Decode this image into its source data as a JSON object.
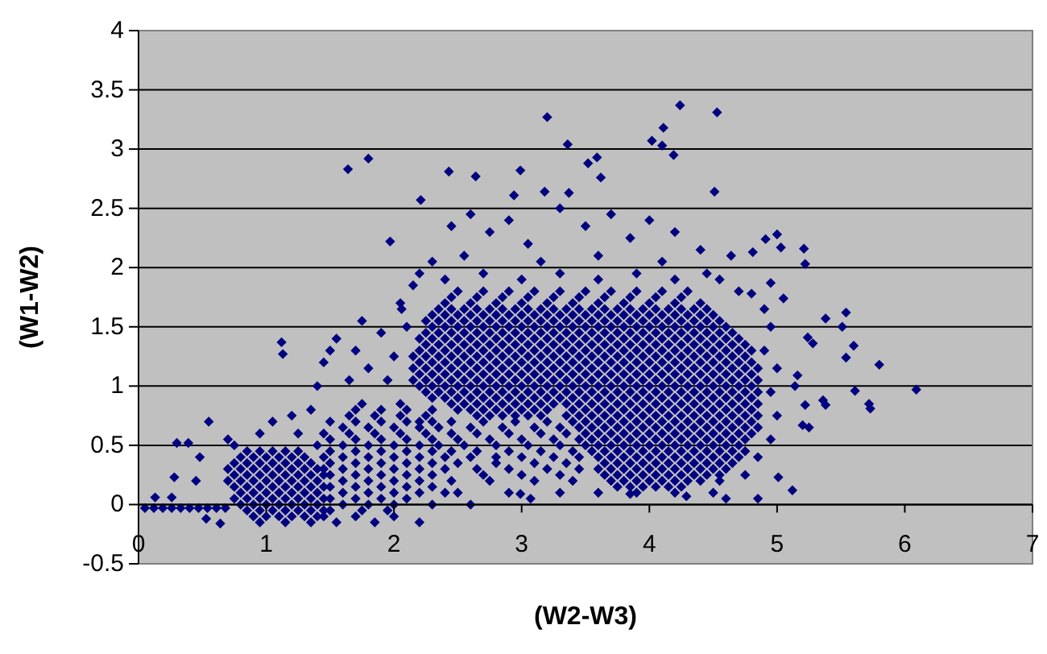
{
  "chart_data": {
    "type": "scatter",
    "xlabel": "(W2-W3)",
    "ylabel": "(W1-W2)",
    "xlim": [
      0,
      7
    ],
    "ylim": [
      -0.5,
      4
    ],
    "xticks": [
      0,
      1,
      2,
      3,
      4,
      5,
      6,
      7
    ],
    "yticks": [
      -0.5,
      0,
      0.5,
      1,
      1.5,
      2,
      2.5,
      3,
      3.5,
      4
    ],
    "grid": "y",
    "marker": "diamond",
    "series": [
      {
        "color": "#000080",
        "x": [
          2.5,
          2.7,
          2.9,
          3.1,
          3.3,
          3.5,
          3.7,
          3.9,
          4.1,
          4.3,
          2.45,
          2.65,
          2.85,
          3.05,
          3.25,
          3.45,
          3.65,
          3.85,
          4.05,
          4.25,
          2.4,
          2.6,
          2.8,
          3,
          3.2,
          3.4,
          3.6,
          3.8,
          4,
          4.2,
          4.4,
          2.35,
          2.45,
          2.55,
          2.65,
          2.75,
          2.85,
          2.95,
          3.05,
          3.15,
          3.25,
          3.35,
          3.45,
          3.55,
          3.65,
          3.75,
          3.85,
          3.95,
          4.05,
          4.15,
          4.25,
          4.35,
          4.45,
          2.3,
          2.4,
          2.5,
          2.6,
          2.7,
          2.8,
          2.9,
          3,
          3.1,
          3.2,
          3.3,
          3.4,
          3.5,
          3.6,
          3.7,
          3.8,
          3.9,
          4,
          4.1,
          4.2,
          4.3,
          4.4,
          4.5,
          2.25,
          2.35,
          2.45,
          2.55,
          2.65,
          2.75,
          2.85,
          2.95,
          3.05,
          3.15,
          3.25,
          3.35,
          3.45,
          3.55,
          3.65,
          3.75,
          3.85,
          3.95,
          4.05,
          4.15,
          4.25,
          4.35,
          4.45,
          4.55,
          2.3,
          2.4,
          2.5,
          2.6,
          2.7,
          2.8,
          2.9,
          3,
          3.1,
          3.2,
          3.3,
          3.4,
          3.5,
          3.6,
          3.7,
          3.8,
          3.9,
          4,
          4.1,
          4.2,
          4.3,
          4.4,
          4.5,
          4.6,
          2.25,
          2.35,
          2.45,
          2.55,
          2.65,
          2.75,
          2.85,
          2.95,
          3.05,
          3.15,
          3.25,
          3.35,
          3.45,
          3.55,
          3.65,
          3.75,
          3.85,
          3.95,
          4.05,
          4.15,
          4.25,
          4.35,
          4.45,
          4.55,
          4.65,
          2.2,
          2.3,
          2.4,
          2.5,
          2.6,
          2.7,
          2.8,
          2.9,
          3,
          3.1,
          3.2,
          3.3,
          3.4,
          3.5,
          3.6,
          3.7,
          3.8,
          3.9,
          4,
          4.1,
          4.2,
          4.3,
          4.4,
          4.5,
          4.6,
          4.7,
          2.25,
          2.35,
          2.45,
          2.55,
          2.65,
          2.75,
          2.85,
          2.95,
          3.05,
          3.15,
          3.25,
          3.35,
          3.45,
          3.55,
          3.65,
          3.75,
          3.85,
          3.95,
          4.05,
          4.15,
          4.25,
          4.35,
          4.45,
          4.55,
          4.65,
          4.75,
          2.2,
          2.3,
          2.4,
          2.5,
          2.6,
          2.7,
          2.8,
          2.9,
          3,
          3.1,
          3.2,
          3.3,
          3.4,
          3.5,
          3.6,
          3.7,
          3.8,
          3.9,
          4,
          4.1,
          4.2,
          4.3,
          4.4,
          4.5,
          4.6,
          4.7,
          4.8,
          2.15,
          2.25,
          2.35,
          2.45,
          2.55,
          2.65,
          2.75,
          2.85,
          2.95,
          3.05,
          3.15,
          3.25,
          3.35,
          3.45,
          3.55,
          3.65,
          3.75,
          3.85,
          3.95,
          4.05,
          4.15,
          4.25,
          4.35,
          4.45,
          4.55,
          4.65,
          4.75,
          2.2,
          2.3,
          2.4,
          2.5,
          2.6,
          2.7,
          2.8,
          2.9,
          3,
          3.1,
          3.2,
          3.3,
          3.4,
          3.5,
          3.6,
          3.7,
          3.8,
          3.9,
          4,
          4.1,
          4.2,
          4.3,
          4.4,
          4.5,
          4.6,
          4.7,
          4.8,
          2.15,
          2.25,
          2.35,
          2.45,
          2.55,
          2.65,
          2.75,
          2.85,
          2.95,
          3.05,
          3.15,
          3.25,
          3.35,
          3.45,
          3.55,
          3.65,
          3.75,
          3.85,
          3.95,
          4.05,
          4.15,
          4.25,
          4.35,
          4.45,
          4.55,
          4.65,
          4.75,
          4.85,
          2.2,
          2.3,
          2.4,
          2.5,
          2.6,
          2.7,
          2.8,
          2.9,
          3,
          3.1,
          3.2,
          3.3,
          3.4,
          3.5,
          3.6,
          3.7,
          3.8,
          3.9,
          4,
          4.1,
          4.2,
          4.3,
          4.4,
          4.5,
          4.6,
          4.7,
          4.8,
          2.15,
          2.25,
          2.35,
          2.45,
          2.55,
          2.65,
          2.75,
          2.85,
          2.95,
          3.05,
          3.15,
          3.25,
          3.35,
          3.45,
          3.55,
          3.65,
          3.75,
          3.85,
          3.95,
          4.05,
          4.15,
          4.25,
          4.35,
          4.45,
          4.55,
          4.65,
          4.75,
          4.85,
          2.2,
          2.3,
          2.4,
          2.5,
          2.6,
          2.7,
          2.8,
          2.9,
          3,
          3.1,
          3.2,
          3.3,
          3.4,
          3.5,
          3.6,
          3.7,
          3.8,
          3.9,
          4,
          4.1,
          4.2,
          4.3,
          4.4,
          4.5,
          4.6,
          4.7,
          4.8,
          2.25,
          2.35,
          2.45,
          2.55,
          2.65,
          2.75,
          2.85,
          2.95,
          3.05,
          3.15,
          3.25,
          3.35,
          3.45,
          3.55,
          3.65,
          3.75,
          3.85,
          3.95,
          4.05,
          4.15,
          4.25,
          4.35,
          4.45,
          4.55,
          4.65,
          4.75,
          4.85,
          2.3,
          2.4,
          2.5,
          2.6,
          2.7,
          2.8,
          2.9,
          3,
          3.1,
          3.2,
          3.3,
          3.4,
          3.5,
          3.6,
          3.7,
          3.8,
          3.9,
          4,
          4.1,
          4.2,
          4.3,
          4.4,
          4.5,
          4.6,
          4.7,
          4.8,
          2.45,
          2.55,
          2.65,
          2.75,
          2.85,
          2.95,
          3.05,
          3.15,
          3.25,
          3.35,
          3.45,
          3.55,
          3.65,
          3.75,
          3.85,
          3.95,
          4.05,
          4.15,
          4.25,
          4.35,
          4.45,
          4.55,
          4.65,
          4.75,
          4.85,
          2.5,
          2.6,
          2.7,
          2.8,
          2.9,
          3,
          3.1,
          3.2,
          3.4,
          3.5,
          3.6,
          3.7,
          3.8,
          3.9,
          4,
          4.1,
          4.2,
          4.3,
          4.4,
          4.5,
          4.6,
          4.7,
          4.8,
          2.65,
          2.75,
          2.85,
          2.95,
          3.05,
          3.15,
          3.35,
          3.45,
          3.55,
          3.65,
          3.75,
          3.85,
          3.95,
          4.05,
          4.15,
          4.25,
          4.35,
          4.45,
          4.55,
          4.65,
          4.75,
          4.85,
          3.4,
          3.5,
          3.6,
          3.7,
          3.8,
          3.9,
          4,
          4.1,
          4.2,
          4.3,
          4.4,
          4.5,
          4.6,
          4.7,
          4.8,
          3.45,
          3.55,
          3.65,
          3.75,
          3.85,
          3.95,
          4.05,
          4.15,
          4.25,
          4.35,
          4.45,
          4.55,
          4.65,
          4.75,
          4.85,
          3.5,
          3.6,
          3.7,
          3.8,
          3.9,
          4,
          4.1,
          4.2,
          4.3,
          4.4,
          4.5,
          4.6,
          4.7,
          4.8,
          3.45,
          3.55,
          3.65,
          3.75,
          3.85,
          3.95,
          4.05,
          4.15,
          4.25,
          4.35,
          4.45,
          4.55,
          4.65,
          4.75,
          3.5,
          3.6,
          3.7,
          3.8,
          3.9,
          4,
          4.1,
          4.2,
          4.3,
          4.4,
          4.5,
          4.6,
          4.7,
          3.55,
          3.65,
          3.75,
          3.85,
          3.95,
          4.05,
          4.15,
          4.25,
          4.35,
          4.45,
          4.55,
          4.65,
          4.75,
          3.6,
          3.7,
          3.8,
          3.9,
          4,
          4.1,
          4.2,
          4.3,
          4.4,
          4.5,
          4.6,
          4.7,
          3.65,
          3.75,
          3.85,
          3.95,
          4.05,
          4.15,
          4.25,
          4.35,
          4.45,
          4.55,
          4.65,
          3.6,
          3.7,
          3.8,
          3.9,
          4,
          4.1,
          4.2,
          4.3,
          4.4,
          4.5,
          4.6,
          3.65,
          3.75,
          3.85,
          3.95,
          4.05,
          4.15,
          4.25,
          4.35,
          4.45,
          4.55,
          3.7,
          3.8,
          3.9,
          4,
          4.1,
          4.2,
          4.3,
          4.4,
          3.75,
          3.85,
          3.95,
          4.05,
          4.15,
          4.25,
          2.2,
          2.45,
          2.7,
          2.95,
          3.2,
          2.35,
          2.6,
          2.85,
          3.1,
          3.3,
          2.45,
          2.65,
          2.9,
          3.15,
          3.35,
          2.5,
          2.75,
          3,
          3.25,
          2.35,
          2.55,
          2.8,
          3.05,
          3.3,
          2.45,
          2.65,
          2.9,
          3.15,
          3.4,
          2.6,
          2.8,
          3,
          3.25,
          3.45,
          2.5,
          2.8,
          3.1,
          3.35,
          2.65,
          2.9,
          3.2,
          3.45,
          2.7,
          3,
          3.3,
          2.75,
          3.1,
          3.4,
          4.55,
          2.5,
          2.9,
          3.3,
          3.6,
          3.9,
          4.2,
          4.5,
          1.75,
          2.05,
          1.7,
          1.9,
          2.1,
          2.3,
          1.65,
          1.85,
          2.05,
          2.25,
          1.5,
          1.7,
          1.9,
          2.1,
          2.3,
          1.6,
          1.8,
          2,
          2.2,
          1.45,
          1.65,
          1.85,
          2.05,
          2.25,
          1.5,
          1.7,
          1.9,
          2.1,
          2.3,
          1.4,
          1.6,
          1.8,
          2,
          2.2,
          1.5,
          1.7,
          1.9,
          2.1,
          2.3,
          1.45,
          1.6,
          1.8,
          2,
          2.2,
          2.4,
          1.5,
          1.7,
          1.9,
          2.1,
          2.3,
          1.45,
          1.6,
          1.8,
          2,
          2.2,
          2.4,
          1.5,
          1.7,
          1.9,
          2.1,
          2.3,
          1.6,
          1.8,
          2,
          2.2,
          2.45,
          1.5,
          1.7,
          1.9,
          2.1,
          2.3,
          1.6,
          1.8,
          2,
          2.2,
          2.4,
          1.5,
          1.7,
          1.9,
          2.1,
          1.6,
          1.8,
          2,
          2.3,
          2.6,
          1.5,
          1.75,
          1.95,
          1.45,
          1.7,
          2,
          1.55,
          1.85,
          2.2,
          0.85,
          0.95,
          1.05,
          1.15,
          1.25,
          0.8,
          0.9,
          1,
          1.1,
          1.2,
          1.3,
          0.75,
          0.85,
          0.95,
          1.05,
          1.15,
          1.25,
          1.35,
          0.7,
          0.8,
          0.9,
          1,
          1.1,
          1.2,
          1.3,
          1.4,
          0.75,
          0.85,
          0.95,
          1.05,
          1.15,
          1.25,
          1.35,
          1.45,
          0.7,
          0.8,
          0.9,
          1,
          1.1,
          1.2,
          1.3,
          1.4,
          0.75,
          0.85,
          0.95,
          1.05,
          1.15,
          1.25,
          1.35,
          1.45,
          0.8,
          0.9,
          1,
          1.1,
          1.2,
          1.3,
          1.4,
          0.75,
          0.85,
          0.95,
          1.05,
          1.15,
          1.25,
          1.35,
          1.45,
          0.8,
          0.9,
          1,
          1.1,
          1.2,
          1.3,
          1.4,
          0.85,
          0.95,
          1.05,
          1.15,
          1.25,
          1.35,
          1.45,
          0.9,
          1,
          1.1,
          1.2,
          1.3,
          1.4,
          0.95,
          1.15,
          1.35,
          0.05,
          0.12,
          0.19,
          0.26,
          0.33,
          0.4,
          0.47,
          0.54,
          0.61,
          0.68,
          0.7,
          0.75,
          0.95,
          1.05,
          1.2,
          1.35,
          1.25,
          0.3,
          0.39,
          0.28,
          0.55,
          0.48,
          0.45,
          0.13,
          0.26,
          0.53,
          0.64,
          1.12,
          1.13,
          1.45,
          1.55,
          1.7,
          1.8,
          1.9,
          2,
          2.1,
          1.65,
          1.95,
          2.05,
          1.75,
          1.4,
          1.5,
          2.15,
          2.45,
          2.6,
          2.75,
          2.9,
          3.05,
          3.3,
          3.5,
          3.7,
          3.85,
          4,
          4.2,
          4.4,
          2.55,
          3.15,
          3.6,
          4.1,
          2.3,
          2.2,
          2.4,
          2.7,
          3,
          3.3,
          3.6,
          3.9,
          4.2,
          4.45,
          1.64,
          1.8,
          1.97,
          2.06,
          2.21,
          2.43,
          2.64,
          2.99,
          2.94,
          3.2,
          3.36,
          3.52,
          3.59,
          3.62,
          4.02,
          4.11,
          4.1,
          4.19,
          4.24,
          4.53,
          4.51,
          3.18,
          3.37,
          4.91,
          5,
          5.03,
          5.21,
          5.22,
          4.81,
          4.64,
          5.54,
          5.38,
          5.05,
          4.95,
          4.8,
          5.51,
          5.6,
          5.54,
          5.8,
          6.09,
          5.61,
          5.72,
          5.73,
          5.36,
          5.38,
          5.22,
          5.25,
          5.2,
          5.12,
          5.01,
          4.85,
          4.6,
          4.29,
          3.85,
          3.07,
          2.99,
          5.24,
          5.28,
          5.16,
          5.14,
          4.95,
          4.9,
          5,
          4.95,
          5,
          4.95,
          4.85,
          4.75,
          4.9,
          4.7,
          4.55
        ],
        "values": [
          1.8,
          1.8,
          1.8,
          1.8,
          1.8,
          1.8,
          1.8,
          1.8,
          1.8,
          1.8,
          1.75,
          1.75,
          1.75,
          1.75,
          1.75,
          1.75,
          1.75,
          1.75,
          1.75,
          1.75,
          1.7,
          1.7,
          1.7,
          1.7,
          1.7,
          1.7,
          1.7,
          1.7,
          1.7,
          1.7,
          1.7,
          1.65,
          1.65,
          1.65,
          1.65,
          1.65,
          1.65,
          1.65,
          1.65,
          1.65,
          1.65,
          1.65,
          1.65,
          1.65,
          1.65,
          1.65,
          1.65,
          1.65,
          1.65,
          1.65,
          1.65,
          1.65,
          1.65,
          1.6,
          1.6,
          1.6,
          1.6,
          1.6,
          1.6,
          1.6,
          1.6,
          1.6,
          1.6,
          1.6,
          1.6,
          1.6,
          1.6,
          1.6,
          1.6,
          1.6,
          1.6,
          1.6,
          1.6,
          1.6,
          1.6,
          1.6,
          1.55,
          1.55,
          1.55,
          1.55,
          1.55,
          1.55,
          1.55,
          1.55,
          1.55,
          1.55,
          1.55,
          1.55,
          1.55,
          1.55,
          1.55,
          1.55,
          1.55,
          1.55,
          1.55,
          1.55,
          1.55,
          1.55,
          1.55,
          1.55,
          1.5,
          1.5,
          1.5,
          1.5,
          1.5,
          1.5,
          1.5,
          1.5,
          1.5,
          1.5,
          1.5,
          1.5,
          1.5,
          1.5,
          1.5,
          1.5,
          1.5,
          1.5,
          1.5,
          1.5,
          1.5,
          1.5,
          1.5,
          1.5,
          1.45,
          1.45,
          1.45,
          1.45,
          1.45,
          1.45,
          1.45,
          1.45,
          1.45,
          1.45,
          1.45,
          1.45,
          1.45,
          1.45,
          1.45,
          1.45,
          1.45,
          1.45,
          1.45,
          1.45,
          1.45,
          1.45,
          1.45,
          1.45,
          1.45,
          1.4,
          1.4,
          1.4,
          1.4,
          1.4,
          1.4,
          1.4,
          1.4,
          1.4,
          1.4,
          1.4,
          1.4,
          1.4,
          1.4,
          1.4,
          1.4,
          1.4,
          1.4,
          1.4,
          1.4,
          1.4,
          1.4,
          1.4,
          1.4,
          1.4,
          1.4,
          1.35,
          1.35,
          1.35,
          1.35,
          1.35,
          1.35,
          1.35,
          1.35,
          1.35,
          1.35,
          1.35,
          1.35,
          1.35,
          1.35,
          1.35,
          1.35,
          1.35,
          1.35,
          1.35,
          1.35,
          1.35,
          1.35,
          1.35,
          1.35,
          1.35,
          1.35,
          1.3,
          1.3,
          1.3,
          1.3,
          1.3,
          1.3,
          1.3,
          1.3,
          1.3,
          1.3,
          1.3,
          1.3,
          1.3,
          1.3,
          1.3,
          1.3,
          1.3,
          1.3,
          1.3,
          1.3,
          1.3,
          1.3,
          1.3,
          1.3,
          1.3,
          1.3,
          1.3,
          1.25,
          1.25,
          1.25,
          1.25,
          1.25,
          1.25,
          1.25,
          1.25,
          1.25,
          1.25,
          1.25,
          1.25,
          1.25,
          1.25,
          1.25,
          1.25,
          1.25,
          1.25,
          1.25,
          1.25,
          1.25,
          1.25,
          1.25,
          1.25,
          1.25,
          1.25,
          1.25,
          1.2,
          1.2,
          1.2,
          1.2,
          1.2,
          1.2,
          1.2,
          1.2,
          1.2,
          1.2,
          1.2,
          1.2,
          1.2,
          1.2,
          1.2,
          1.2,
          1.2,
          1.2,
          1.2,
          1.2,
          1.2,
          1.2,
          1.2,
          1.2,
          1.2,
          1.2,
          1.2,
          1.15,
          1.15,
          1.15,
          1.15,
          1.15,
          1.15,
          1.15,
          1.15,
          1.15,
          1.15,
          1.15,
          1.15,
          1.15,
          1.15,
          1.15,
          1.15,
          1.15,
          1.15,
          1.15,
          1.15,
          1.15,
          1.15,
          1.15,
          1.15,
          1.15,
          1.15,
          1.15,
          1.15,
          1.1,
          1.1,
          1.1,
          1.1,
          1.1,
          1.1,
          1.1,
          1.1,
          1.1,
          1.1,
          1.1,
          1.1,
          1.1,
          1.1,
          1.1,
          1.1,
          1.1,
          1.1,
          1.1,
          1.1,
          1.1,
          1.1,
          1.1,
          1.1,
          1.1,
          1.1,
          1.1,
          1.05,
          1.05,
          1.05,
          1.05,
          1.05,
          1.05,
          1.05,
          1.05,
          1.05,
          1.05,
          1.05,
          1.05,
          1.05,
          1.05,
          1.05,
          1.05,
          1.05,
          1.05,
          1.05,
          1.05,
          1.05,
          1.05,
          1.05,
          1.05,
          1.05,
          1.05,
          1.05,
          1.05,
          1,
          1,
          1,
          1,
          1,
          1,
          1,
          1,
          1,
          1,
          1,
          1,
          1,
          1,
          1,
          1,
          1,
          1,
          1,
          1,
          1,
          1,
          1,
          1,
          1,
          1,
          1,
          0.95,
          0.95,
          0.95,
          0.95,
          0.95,
          0.95,
          0.95,
          0.95,
          0.95,
          0.95,
          0.95,
          0.95,
          0.95,
          0.95,
          0.95,
          0.95,
          0.95,
          0.95,
          0.95,
          0.95,
          0.95,
          0.95,
          0.95,
          0.95,
          0.95,
          0.95,
          0.95,
          0.9,
          0.9,
          0.9,
          0.9,
          0.9,
          0.9,
          0.9,
          0.9,
          0.9,
          0.9,
          0.9,
          0.9,
          0.9,
          0.9,
          0.9,
          0.9,
          0.9,
          0.9,
          0.9,
          0.9,
          0.9,
          0.9,
          0.9,
          0.9,
          0.9,
          0.9,
          0.85,
          0.85,
          0.85,
          0.85,
          0.85,
          0.85,
          0.85,
          0.85,
          0.85,
          0.85,
          0.85,
          0.85,
          0.85,
          0.85,
          0.85,
          0.85,
          0.85,
          0.85,
          0.85,
          0.85,
          0.85,
          0.85,
          0.85,
          0.85,
          0.85,
          0.8,
          0.8,
          0.8,
          0.8,
          0.8,
          0.8,
          0.8,
          0.8,
          0.8,
          0.8,
          0.8,
          0.8,
          0.8,
          0.8,
          0.8,
          0.8,
          0.8,
          0.8,
          0.8,
          0.8,
          0.8,
          0.8,
          0.8,
          0.75,
          0.75,
          0.75,
          0.75,
          0.75,
          0.75,
          0.75,
          0.75,
          0.75,
          0.75,
          0.75,
          0.75,
          0.75,
          0.75,
          0.75,
          0.75,
          0.75,
          0.75,
          0.75,
          0.75,
          0.75,
          0.75,
          0.7,
          0.7,
          0.7,
          0.7,
          0.7,
          0.7,
          0.7,
          0.7,
          0.7,
          0.7,
          0.7,
          0.7,
          0.7,
          0.7,
          0.7,
          0.65,
          0.65,
          0.65,
          0.65,
          0.65,
          0.65,
          0.65,
          0.65,
          0.65,
          0.65,
          0.65,
          0.65,
          0.65,
          0.65,
          0.65,
          0.6,
          0.6,
          0.6,
          0.6,
          0.6,
          0.6,
          0.6,
          0.6,
          0.6,
          0.6,
          0.6,
          0.6,
          0.6,
          0.6,
          0.55,
          0.55,
          0.55,
          0.55,
          0.55,
          0.55,
          0.55,
          0.55,
          0.55,
          0.55,
          0.55,
          0.55,
          0.55,
          0.55,
          0.5,
          0.5,
          0.5,
          0.5,
          0.5,
          0.5,
          0.5,
          0.5,
          0.5,
          0.5,
          0.5,
          0.5,
          0.5,
          0.45,
          0.45,
          0.45,
          0.45,
          0.45,
          0.45,
          0.45,
          0.45,
          0.45,
          0.45,
          0.45,
          0.45,
          0.45,
          0.4,
          0.4,
          0.4,
          0.4,
          0.4,
          0.4,
          0.4,
          0.4,
          0.4,
          0.4,
          0.4,
          0.4,
          0.35,
          0.35,
          0.35,
          0.35,
          0.35,
          0.35,
          0.35,
          0.35,
          0.35,
          0.35,
          0.35,
          0.3,
          0.3,
          0.3,
          0.3,
          0.3,
          0.3,
          0.3,
          0.3,
          0.3,
          0.3,
          0.3,
          0.25,
          0.25,
          0.25,
          0.25,
          0.25,
          0.25,
          0.25,
          0.25,
          0.25,
          0.25,
          0.2,
          0.2,
          0.2,
          0.2,
          0.2,
          0.2,
          0.2,
          0.2,
          0.15,
          0.15,
          0.15,
          0.15,
          0.15,
          0.15,
          0.7,
          0.7,
          0.7,
          0.7,
          0.7,
          0.65,
          0.65,
          0.65,
          0.65,
          0.65,
          0.6,
          0.6,
          0.6,
          0.6,
          0.6,
          0.55,
          0.55,
          0.55,
          0.55,
          0.5,
          0.5,
          0.5,
          0.5,
          0.5,
          0.45,
          0.45,
          0.45,
          0.45,
          0.45,
          0.4,
          0.4,
          0.4,
          0.4,
          0.4,
          0.35,
          0.35,
          0.35,
          0.35,
          0.3,
          0.3,
          0.3,
          0.3,
          0.25,
          0.25,
          0.25,
          0.2,
          0.2,
          0.2,
          0.2,
          0.1,
          0.1,
          0.1,
          0.1,
          0.1,
          0.1,
          0.1,
          0.85,
          0.85,
          0.8,
          0.8,
          0.8,
          0.8,
          0.75,
          0.75,
          0.75,
          0.75,
          0.7,
          0.7,
          0.7,
          0.7,
          0.7,
          0.65,
          0.65,
          0.65,
          0.65,
          0.6,
          0.6,
          0.6,
          0.6,
          0.6,
          0.55,
          0.55,
          0.55,
          0.55,
          0.55,
          0.5,
          0.5,
          0.5,
          0.5,
          0.5,
          0.45,
          0.45,
          0.45,
          0.45,
          0.45,
          0.4,
          0.4,
          0.4,
          0.4,
          0.4,
          0.4,
          0.35,
          0.35,
          0.35,
          0.35,
          0.35,
          0.3,
          0.3,
          0.3,
          0.3,
          0.3,
          0.3,
          0.25,
          0.25,
          0.25,
          0.25,
          0.25,
          0.2,
          0.2,
          0.2,
          0.2,
          0.2,
          0.15,
          0.15,
          0.15,
          0.15,
          0.15,
          0.1,
          0.1,
          0.1,
          0.1,
          0.1,
          0.05,
          0.05,
          0.05,
          0.05,
          0,
          0,
          0,
          0,
          0,
          -0.05,
          -0.05,
          -0.05,
          -0.1,
          -0.1,
          -0.1,
          -0.15,
          -0.15,
          -0.15,
          0.45,
          0.45,
          0.45,
          0.45,
          0.45,
          0.4,
          0.4,
          0.4,
          0.4,
          0.4,
          0.4,
          0.35,
          0.35,
          0.35,
          0.35,
          0.35,
          0.35,
          0.35,
          0.3,
          0.3,
          0.3,
          0.3,
          0.3,
          0.3,
          0.3,
          0.3,
          0.25,
          0.25,
          0.25,
          0.25,
          0.25,
          0.25,
          0.25,
          0.25,
          0.2,
          0.2,
          0.2,
          0.2,
          0.2,
          0.2,
          0.2,
          0.2,
          0.15,
          0.15,
          0.15,
          0.15,
          0.15,
          0.15,
          0.15,
          0.15,
          0.1,
          0.1,
          0.1,
          0.1,
          0.1,
          0.1,
          0.1,
          0.05,
          0.05,
          0.05,
          0.05,
          0.05,
          0.05,
          0.05,
          0.05,
          0,
          0,
          0,
          0,
          0,
          0,
          0,
          -0.05,
          -0.05,
          -0.05,
          -0.05,
          -0.05,
          -0.05,
          -0.05,
          -0.1,
          -0.1,
          -0.1,
          -0.1,
          -0.1,
          -0.1,
          -0.15,
          -0.15,
          -0.15,
          -0.03,
          -0.03,
          -0.03,
          -0.03,
          -0.03,
          -0.03,
          -0.03,
          -0.03,
          -0.03,
          -0.03,
          0.55,
          0.5,
          0.6,
          0.7,
          0.75,
          0.8,
          0.6,
          0.52,
          0.52,
          0.23,
          0.7,
          0.4,
          0.2,
          0.06,
          0.06,
          -0.12,
          -0.16,
          1.37,
          1.27,
          1.2,
          1.4,
          1.3,
          1.15,
          1.45,
          1.25,
          1.5,
          1.05,
          1.05,
          1.7,
          1.55,
          1,
          1.3,
          1.85,
          2.35,
          2.45,
          2.3,
          2.4,
          2.2,
          2.5,
          2.35,
          2.45,
          2.25,
          2.4,
          2.3,
          2.15,
          2.1,
          2.05,
          2.1,
          2.05,
          2.05,
          1.95,
          1.9,
          1.95,
          1.9,
          1.95,
          1.9,
          1.95,
          1.9,
          1.95,
          2.83,
          2.92,
          2.22,
          1.65,
          2.57,
          2.81,
          2.77,
          2.82,
          2.61,
          3.27,
          3.04,
          2.88,
          2.93,
          2.76,
          3.07,
          3.18,
          3.03,
          2.95,
          3.37,
          3.31,
          2.64,
          2.64,
          2.63,
          2.24,
          2.28,
          2.17,
          2.16,
          2.03,
          2.13,
          2.1,
          1.62,
          1.57,
          1.74,
          1.87,
          1.78,
          1.5,
          1.34,
          1.24,
          1.18,
          0.97,
          0.96,
          0.85,
          0.81,
          0.88,
          0.84,
          0.84,
          0.65,
          0.67,
          0.12,
          0.23,
          0.05,
          0.05,
          0.07,
          0.09,
          0.05,
          0.09,
          1.41,
          1.36,
          1.09,
          1,
          1.5,
          1.3,
          1.15,
          0.95,
          0.75,
          0.55,
          0.4,
          0.25,
          1.65,
          1.8,
          1.9
        ]
      }
    ]
  }
}
